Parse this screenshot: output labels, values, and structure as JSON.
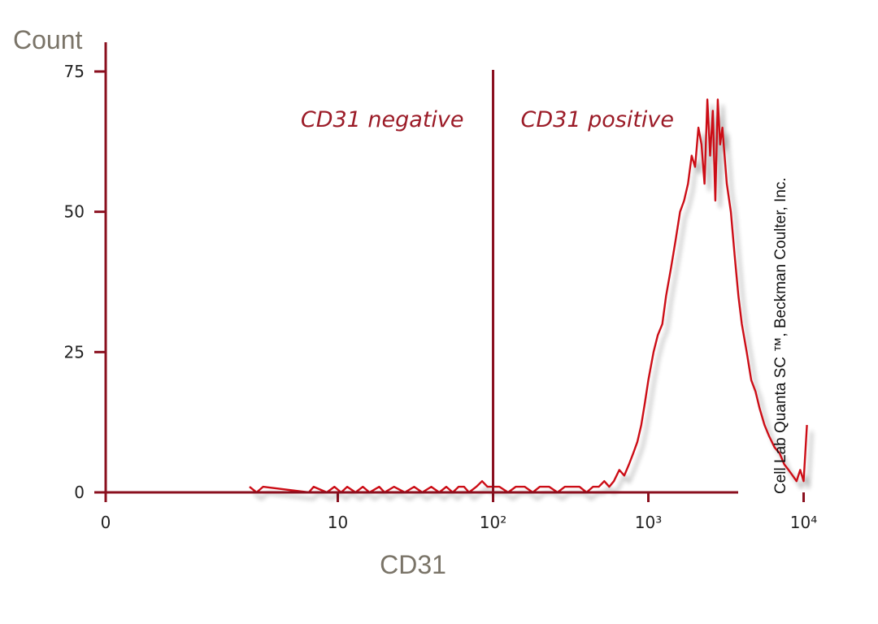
{
  "chart_data": {
    "type": "line",
    "title": "",
    "xlabel": "CD31",
    "ylabel": "Count",
    "xscale": "log",
    "xlim": [
      0.32,
      10000
    ],
    "ylim": [
      0,
      75
    ],
    "x_ticks": [
      {
        "value": 0.32,
        "label": "0"
      },
      {
        "value": 10,
        "label": "10"
      },
      {
        "value": 100,
        "label": "10²"
      },
      {
        "value": 1000,
        "label": "10³"
      },
      {
        "value": 10000,
        "label": "10⁴"
      }
    ],
    "y_ticks": [
      {
        "value": 0,
        "label": "0"
      },
      {
        "value": 25,
        "label": "25"
      },
      {
        "value": 50,
        "label": "50"
      },
      {
        "value": 75,
        "label": "75"
      }
    ],
    "gate": {
      "x": 100,
      "left_label": "CD31 negative",
      "right_label": "CD31 positive"
    },
    "annotation": "Cell Lab Quanta SC ™, Beckman Coulter, Inc.",
    "grid": false,
    "legend": "none",
    "series": [
      {
        "color": "#cc1018",
        "x": [
          2.7,
          3.0,
          3.3,
          6.5,
          7.0,
          8.5,
          9.5,
          10.5,
          11.5,
          13.0,
          14.5,
          16.0,
          18.5,
          20.0,
          23.0,
          27.0,
          31.0,
          35.0,
          40.0,
          45.0,
          50.0,
          55.0,
          60.0,
          65.0,
          70.0,
          78.0,
          85.0,
          92.0,
          110.0,
          125.0,
          140.0,
          160.0,
          180.0,
          200.0,
          230.0,
          260.0,
          290.0,
          320.0,
          360.0,
          400.0,
          440.0,
          480.0,
          520.0,
          560.0,
          600.0,
          650.0,
          700.0,
          750.0,
          800.0,
          850.0,
          900.0,
          950.0,
          1000.0,
          1080.0,
          1150.0,
          1230.0,
          1300.0,
          1400.0,
          1500.0,
          1600.0,
          1700.0,
          1800.0,
          1900.0,
          2000.0,
          2100.0,
          2200.0,
          2300.0,
          2400.0,
          2500.0,
          2600.0,
          2700.0,
          2800.0,
          2900.0,
          3000.0,
          3200.0,
          3400.0,
          3600.0,
          3800.0,
          4000.0,
          4300.0,
          4600.0,
          4900.0,
          5200.0,
          5600.0,
          6000.0,
          6500.0,
          7000.0,
          7500.0,
          8000.0,
          8500.0,
          9000.0,
          9500.0,
          10000.0,
          10500.0
        ],
        "values": [
          1,
          0,
          1,
          0,
          1,
          0,
          1,
          0,
          1,
          0,
          1,
          0,
          1,
          0,
          1,
          0,
          1,
          0,
          1,
          0,
          1,
          0,
          1,
          1,
          0,
          1,
          2,
          1,
          1,
          0,
          1,
          1,
          0,
          1,
          1,
          0,
          1,
          1,
          1,
          0,
          1,
          1,
          2,
          1,
          2,
          4,
          3,
          5,
          7,
          9,
          12,
          16,
          20,
          25,
          28,
          30,
          35,
          40,
          45,
          50,
          52,
          55,
          60,
          58,
          65,
          62,
          55,
          70,
          60,
          68,
          52,
          70,
          62,
          65,
          55,
          50,
          42,
          35,
          30,
          25,
          20,
          18,
          15,
          12,
          10,
          8,
          7,
          5,
          4,
          3,
          2,
          4,
          2,
          12
        ]
      }
    ]
  }
}
